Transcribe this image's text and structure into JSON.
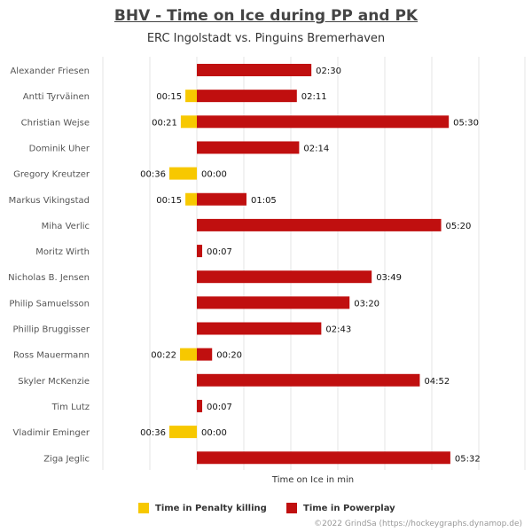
{
  "title": "BHV - Time on Ice during PP and PK",
  "subtitle": "ERC Ingolstadt vs. Pinguins Bremerhaven",
  "credit": "©2022 GrindSa (https://hockeygraphs.dynamop.de)",
  "colors": {
    "powerplay": "#c00f0f",
    "penalty_killing": "#f7c800",
    "grid": "#e6e6e6"
  },
  "chart_data": {
    "type": "bar",
    "orientation": "horizontal",
    "xlabel": "Time on Ice in min",
    "ylabel": "",
    "grid": true,
    "legend_position": "bottom",
    "value_unit": "seconds",
    "categories": [
      "Alexander Friesen",
      "Antti Tyrväinen",
      "Christian Wejse",
      "Dominik Uher",
      "Gregory Kreutzer",
      "Markus Vikingstad",
      "Miha Verlic",
      "Moritz Wirth",
      "Nicholas B. Jensen",
      "Philip Samuelsson",
      "Phillip Bruggisser",
      "Ross Mauermann",
      "Skyler McKenzie",
      "Tim Lutz",
      "Vladimir Eminger",
      "Ziga Jeglic"
    ],
    "series": [
      {
        "name": "Time in Penalty killing",
        "direction": "left",
        "values": [
          0,
          15,
          21,
          0,
          36,
          15,
          0,
          0,
          0,
          0,
          0,
          22,
          0,
          0,
          36,
          0
        ],
        "labels": [
          "",
          "00:15",
          "00:21",
          "",
          "00:36",
          "00:15",
          "",
          "",
          "",
          "",
          "",
          "00:22",
          "",
          "",
          "00:36",
          ""
        ]
      },
      {
        "name": "Time in Powerplay",
        "direction": "right",
        "values": [
          150,
          131,
          330,
          134,
          0,
          65,
          320,
          7,
          229,
          200,
          163,
          20,
          292,
          7,
          0,
          332
        ],
        "labels": [
          "02:30",
          "02:11",
          "05:30",
          "02:14",
          "00:00",
          "01:05",
          "05:20",
          "00:07",
          "03:49",
          "03:20",
          "02:43",
          "00:20",
          "04:52",
          "00:07",
          "00:00",
          "05:32"
        ]
      }
    ]
  }
}
